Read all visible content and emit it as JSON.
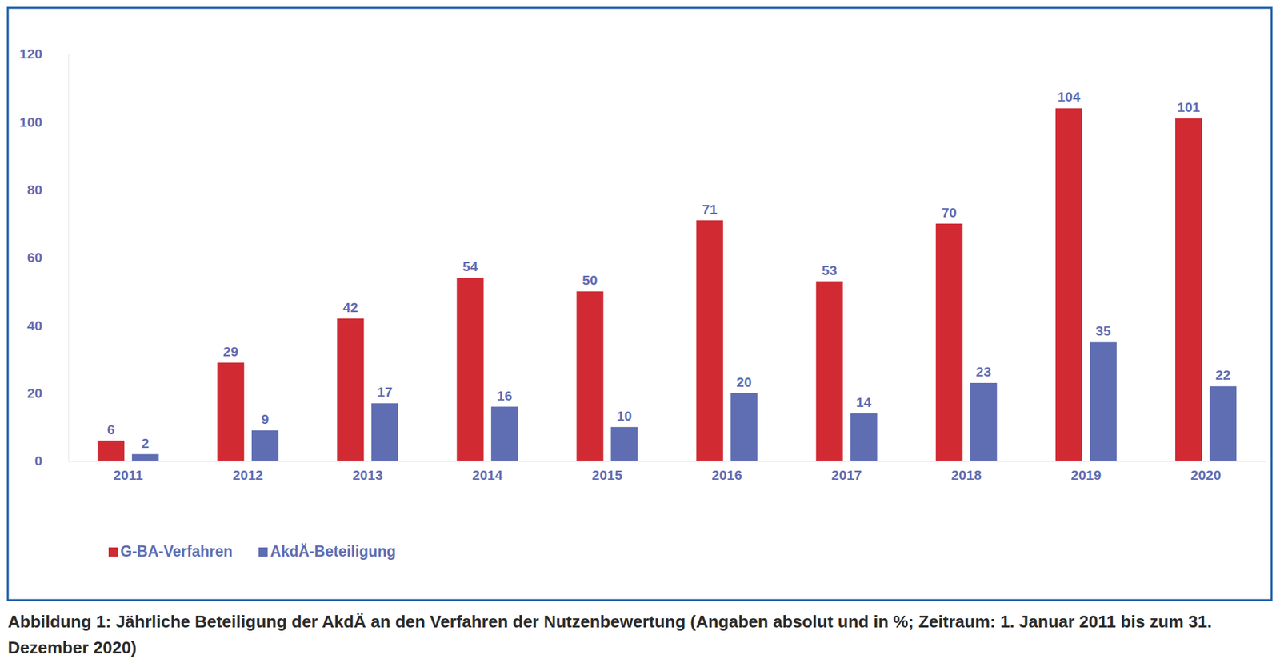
{
  "chart_data": {
    "type": "bar",
    "title": "Abbildung 1: Jährliche Beteiligung der AkdÄ an den Verfahren der Nutzenbewertung (Angaben absolut und in %; Zeitraum: 1. Januar 2011 bis zum 31. Dezember 2020)",
    "categories": [
      "2011",
      "2012",
      "2013",
      "2014",
      "2015",
      "2016",
      "2017",
      "2018",
      "2019",
      "2020"
    ],
    "series": [
      {
        "name": "G-BA-Verfahren",
        "color": "#d12a32",
        "values": [
          6,
          29,
          42,
          54,
          50,
          71,
          53,
          70,
          104,
          101
        ]
      },
      {
        "name": "AkdÄ-Beteiligung",
        "color": "#5f6db3",
        "values": [
          2,
          9,
          17,
          16,
          10,
          20,
          14,
          23,
          35,
          22
        ]
      }
    ],
    "ylim": [
      0,
      120
    ],
    "yticks": [
      0,
      20,
      40,
      60,
      80,
      100,
      120
    ],
    "grid": false,
    "legend": "bottom-left",
    "data_labels": true
  }
}
